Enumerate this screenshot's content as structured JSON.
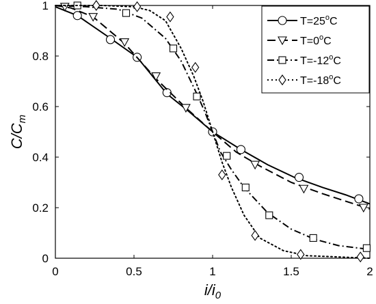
{
  "chart_data": {
    "type": "line",
    "xlabel": "i/i",
    "xlabel_sub": "0",
    "ylabel": "C/C",
    "ylabel_sub": "m",
    "xlim": [
      0,
      2
    ],
    "ylim": [
      0,
      1
    ],
    "xticks": [
      0,
      0.5,
      1,
      1.5,
      2
    ],
    "xtick_labels": [
      "0",
      "0.5",
      "1",
      "1.5",
      "2"
    ],
    "yticks": [
      0,
      0.2,
      0.4,
      0.6,
      0.8,
      1
    ],
    "ytick_labels": [
      "0",
      "0.2",
      "0.4",
      "0.6",
      "0.8",
      "1"
    ],
    "grid": false,
    "legend_position": "top-right",
    "series": [
      {
        "name": "T=25°C",
        "legend_prefix": "T=25",
        "legend_suffix": "C",
        "line_style": "solid",
        "marker": "circle",
        "x": [
          0.0,
          0.14,
          0.35,
          0.52,
          0.71,
          0.85,
          1.0,
          1.18,
          1.35,
          1.52,
          1.7,
          1.85,
          2.0
        ],
        "y": [
          0.995,
          0.96,
          0.87,
          0.795,
          0.65,
          0.58,
          0.5,
          0.43,
          0.37,
          0.32,
          0.28,
          0.25,
          0.215
        ],
        "marker_points": {
          "x": [
            0.14,
            0.35,
            0.52,
            0.71,
            1.0,
            1.18,
            1.55,
            1.93
          ],
          "y": [
            0.96,
            0.865,
            0.795,
            0.655,
            0.5,
            0.43,
            0.32,
            0.235
          ]
        }
      },
      {
        "name": "T=0°C",
        "legend_prefix": "T=0",
        "legend_suffix": "C",
        "line_style": "dashed",
        "marker": "triangle-down",
        "x": [
          0.0,
          0.1,
          0.24,
          0.44,
          0.64,
          0.83,
          1.0,
          1.15,
          1.3,
          1.5,
          1.7,
          1.85,
          2.0
        ],
        "y": [
          1.0,
          0.99,
          0.955,
          0.85,
          0.71,
          0.595,
          0.5,
          0.42,
          0.365,
          0.3,
          0.255,
          0.225,
          0.195
        ],
        "marker_points": {
          "x": [
            0.06,
            0.24,
            0.44,
            0.64,
            0.83,
            1.27,
            1.58,
            1.96
          ],
          "y": [
            0.995,
            0.955,
            0.855,
            0.72,
            0.595,
            0.37,
            0.275,
            0.2
          ]
        }
      },
      {
        "name": "T=-12°C",
        "legend_prefix": "T=-12",
        "legend_suffix": "C",
        "line_style": "dashdot",
        "marker": "square",
        "x": [
          0.0,
          0.2,
          0.4,
          0.55,
          0.7,
          0.8,
          0.9,
          0.95,
          1.0,
          1.05,
          1.12,
          1.2,
          1.35,
          1.5,
          1.65,
          1.8,
          2.0
        ],
        "y": [
          1.0,
          0.995,
          0.985,
          0.95,
          0.87,
          0.78,
          0.65,
          0.58,
          0.5,
          0.42,
          0.35,
          0.28,
          0.18,
          0.115,
          0.075,
          0.05,
          0.035
        ],
        "marker_points": {
          "x": [
            0.14,
            0.45,
            0.75,
            0.9,
            1.09,
            1.21,
            1.36,
            1.64,
            1.98
          ],
          "y": [
            1.0,
            0.97,
            0.83,
            0.64,
            0.405,
            0.28,
            0.17,
            0.08,
            0.04
          ]
        }
      },
      {
        "name": "T=-18°C",
        "legend_prefix": "T=-18",
        "legend_suffix": "C",
        "line_style": "dotted",
        "marker": "diamond",
        "x": [
          0.0,
          0.3,
          0.5,
          0.6,
          0.7,
          0.8,
          0.88,
          0.94,
          1.0,
          1.06,
          1.12,
          1.2,
          1.3,
          1.45,
          1.6,
          1.8,
          2.0
        ],
        "y": [
          1.0,
          1.0,
          0.995,
          0.98,
          0.94,
          0.83,
          0.72,
          0.62,
          0.5,
          0.38,
          0.28,
          0.17,
          0.08,
          0.03,
          0.01,
          0.005,
          0.0
        ],
        "marker_points": {
          "x": [
            0.26,
            0.52,
            0.73,
            0.89,
            1.06,
            1.27,
            1.56,
            1.94
          ],
          "y": [
            1.0,
            0.995,
            0.955,
            0.755,
            0.33,
            0.09,
            0.015,
            0.005
          ]
        }
      }
    ]
  }
}
